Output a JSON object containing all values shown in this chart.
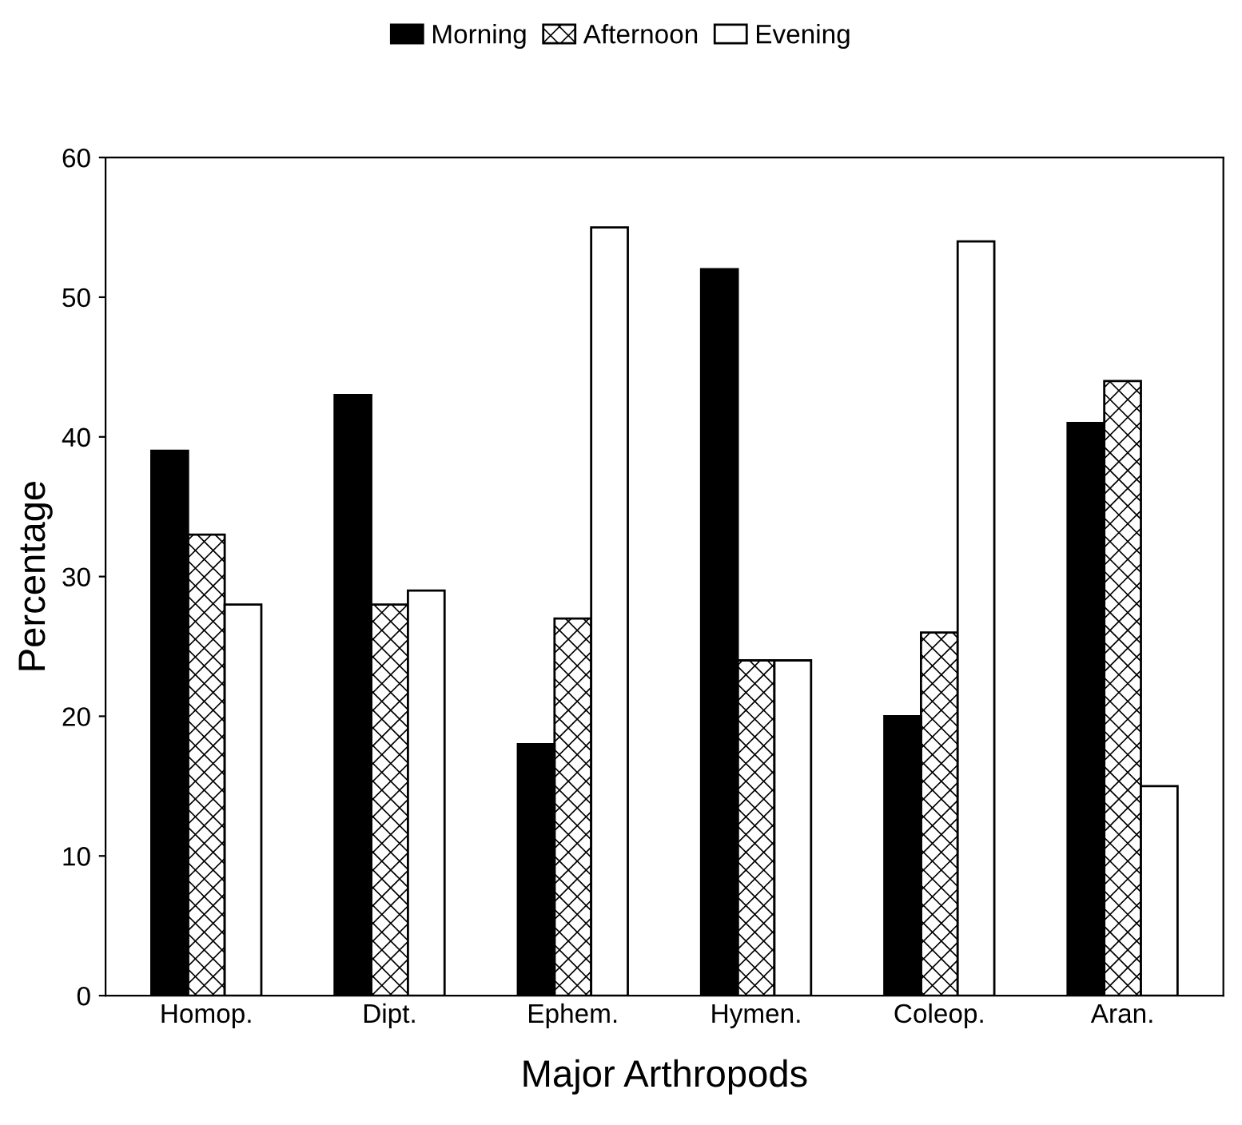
{
  "chart_data": {
    "type": "bar",
    "xlabel": "Major Arthropods",
    "ylabel": "Percentage",
    "categories": [
      "Homop.",
      "Dipt.",
      "Ephem.",
      "Hymen.",
      "Coleop.",
      "Aran."
    ],
    "series": [
      {
        "name": "Morning",
        "color": "#000000",
        "values": [
          39,
          43,
          18,
          52,
          20,
          41
        ]
      },
      {
        "name": "Afternoon",
        "color": "#000000",
        "values": [
          33,
          28,
          27,
          24,
          26,
          44
        ]
      },
      {
        "name": "Evening",
        "color": "#ffffff",
        "values": [
          28,
          29,
          55,
          24,
          54,
          15
        ]
      }
    ],
    "ylim": [
      0,
      60
    ],
    "yticks": [
      0,
      10,
      20,
      30,
      40,
      50,
      60
    ],
    "grid": false,
    "legend": "top"
  }
}
